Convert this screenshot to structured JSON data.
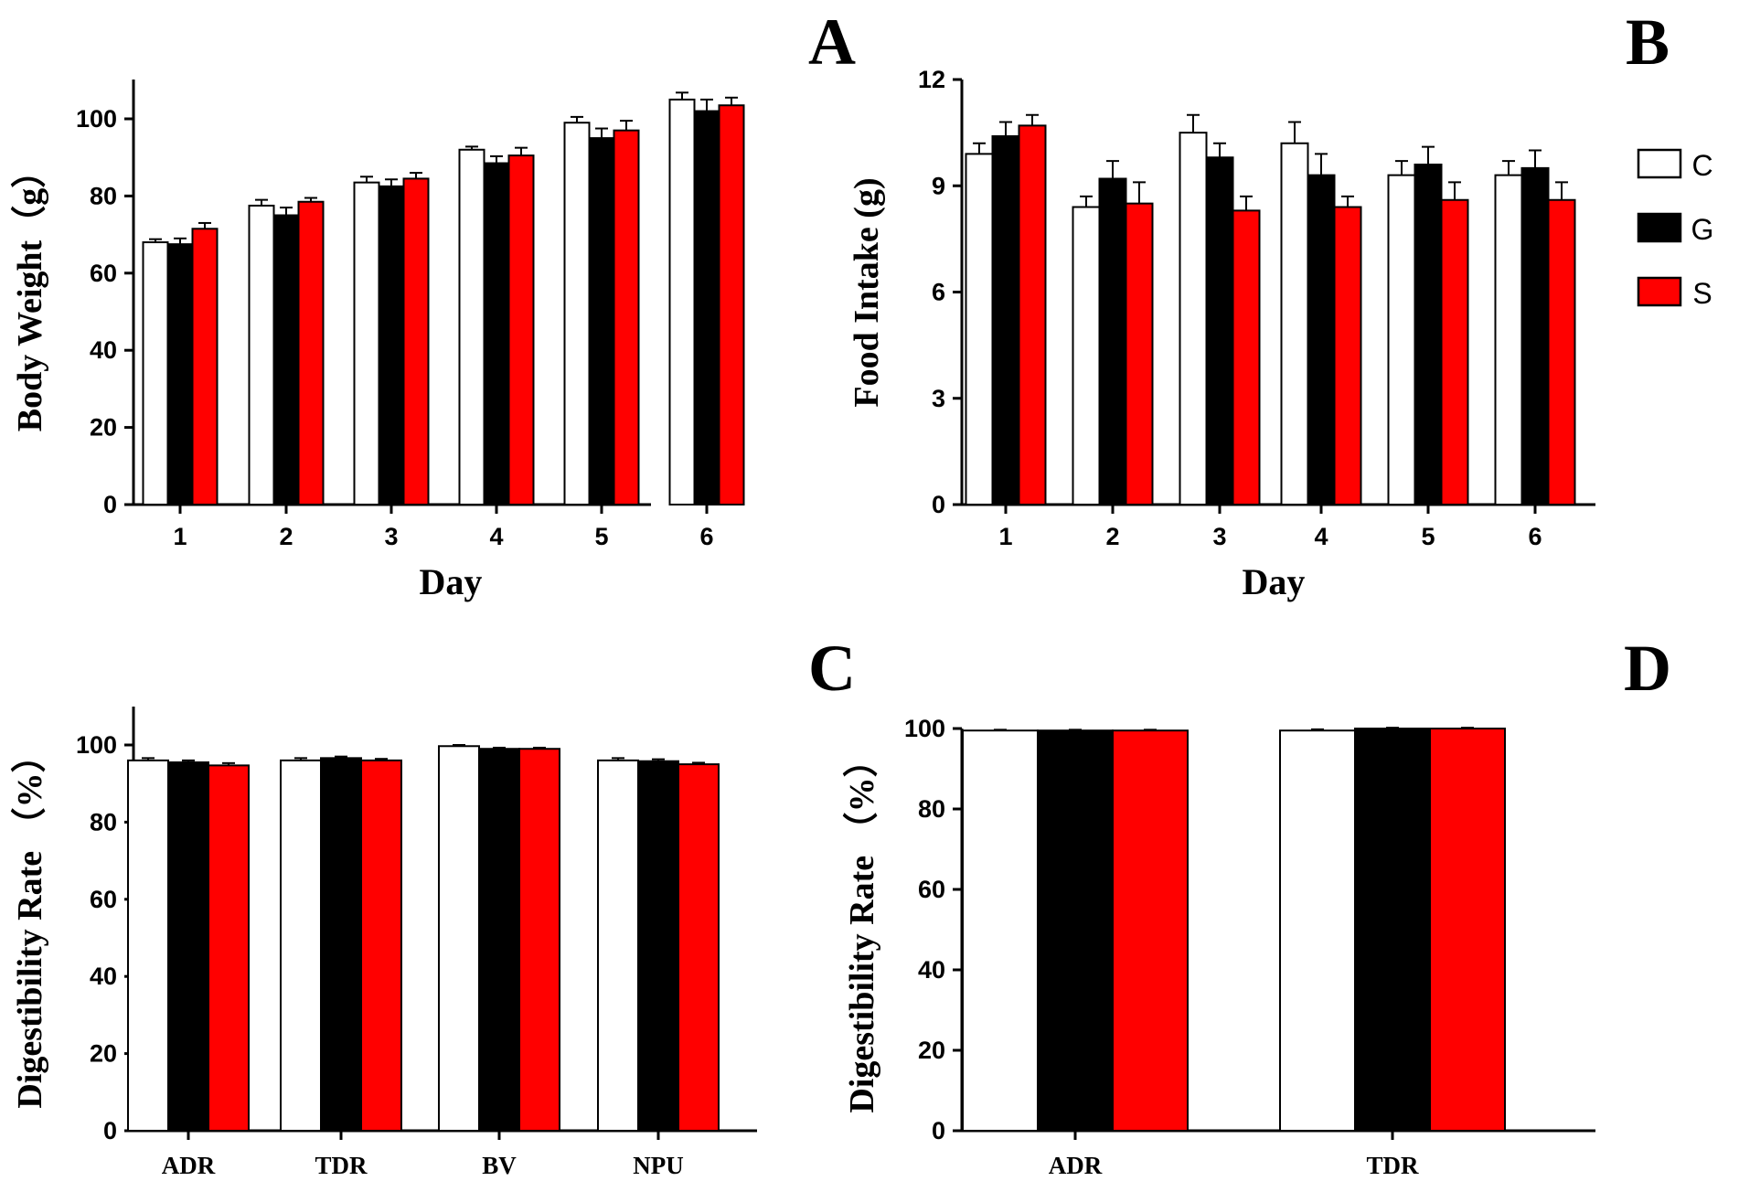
{
  "colors": {
    "C": "#ffffff",
    "G": "#000000",
    "S": "#ff0000",
    "axis": "#000000"
  },
  "legend": {
    "entries": [
      "C",
      "G",
      "S"
    ]
  },
  "chart_data": [
    {
      "id": "A",
      "panel_letter": "A",
      "type": "bar",
      "xlabel": "Day",
      "ylabel": "Body Weight（g）",
      "ylim": [
        0,
        110
      ],
      "yticks": [
        "0",
        "20",
        "40",
        "60",
        "80",
        "100"
      ],
      "categories": [
        "1",
        "2",
        "3",
        "4",
        "5",
        "6"
      ],
      "series": [
        {
          "name": "C",
          "values": [
            68,
            77.5,
            83.5,
            92,
            99,
            105
          ],
          "errors": [
            0.8,
            1.5,
            1.5,
            0.8,
            1.5,
            1.8
          ]
        },
        {
          "name": "G",
          "values": [
            67.5,
            75,
            82.5,
            88.5,
            95,
            102
          ],
          "errors": [
            1.5,
            2.0,
            1.8,
            1.8,
            2.5,
            3.0
          ]
        },
        {
          "name": "S",
          "values": [
            71.5,
            78.5,
            84.5,
            90.5,
            97,
            103.5
          ],
          "errors": [
            1.5,
            1.0,
            1.5,
            2.0,
            2.5,
            2.0
          ]
        }
      ]
    },
    {
      "id": "B",
      "panel_letter": "B",
      "type": "bar",
      "xlabel": "Day",
      "ylabel": "Food Intake (g)",
      "ylim": [
        0,
        12
      ],
      "yticks": [
        "0",
        "3",
        "6",
        "9",
        "12"
      ],
      "categories": [
        "1",
        "2",
        "3",
        "4",
        "5",
        "6"
      ],
      "series": [
        {
          "name": "C",
          "values": [
            9.9,
            8.4,
            10.5,
            10.2,
            9.3,
            9.3
          ],
          "errors": [
            0.3,
            0.3,
            0.5,
            0.6,
            0.4,
            0.4
          ]
        },
        {
          "name": "G",
          "values": [
            10.4,
            9.2,
            9.8,
            9.3,
            9.6,
            9.5
          ],
          "errors": [
            0.4,
            0.5,
            0.4,
            0.6,
            0.5,
            0.5
          ]
        },
        {
          "name": "S",
          "values": [
            10.7,
            8.5,
            8.3,
            8.4,
            8.6,
            8.6
          ],
          "errors": [
            0.3,
            0.6,
            0.4,
            0.3,
            0.5,
            0.5
          ]
        }
      ]
    },
    {
      "id": "C",
      "panel_letter": "C",
      "type": "bar",
      "xlabel": "",
      "ylabel": "Digestibility Rate （%）",
      "ylim": [
        0,
        110
      ],
      "yticks": [
        "0",
        "20",
        "40",
        "60",
        "80",
        "100"
      ],
      "categories": [
        "ADR",
        "TDR",
        "BV",
        "NPU"
      ],
      "series": [
        {
          "name": "C",
          "values": [
            96,
            96,
            99.7,
            96
          ],
          "errors": [
            0.6,
            0.6,
            0.3,
            0.6
          ]
        },
        {
          "name": "G",
          "values": [
            95.5,
            96.6,
            99,
            95.8
          ],
          "errors": [
            0.5,
            0.4,
            0.3,
            0.5
          ]
        },
        {
          "name": "S",
          "values": [
            94.7,
            96,
            99,
            95
          ],
          "errors": [
            0.6,
            0.4,
            0.3,
            0.4
          ]
        }
      ]
    },
    {
      "id": "D",
      "panel_letter": "D",
      "type": "bar",
      "xlabel": "",
      "ylabel": "Digestibility Rate （%）",
      "ylim": [
        0,
        100
      ],
      "yticks": [
        "0",
        "20",
        "40",
        "60",
        "80",
        "100"
      ],
      "categories": [
        "ADR",
        "TDR"
      ],
      "series": [
        {
          "name": "C",
          "values": [
            99.5,
            99.5
          ],
          "errors": [
            0.2,
            0.3
          ]
        },
        {
          "name": "G",
          "values": [
            99.5,
            100
          ],
          "errors": [
            0.2,
            0.2
          ]
        },
        {
          "name": "S",
          "values": [
            99.5,
            100
          ],
          "errors": [
            0.2,
            0.2
          ]
        }
      ]
    }
  ]
}
